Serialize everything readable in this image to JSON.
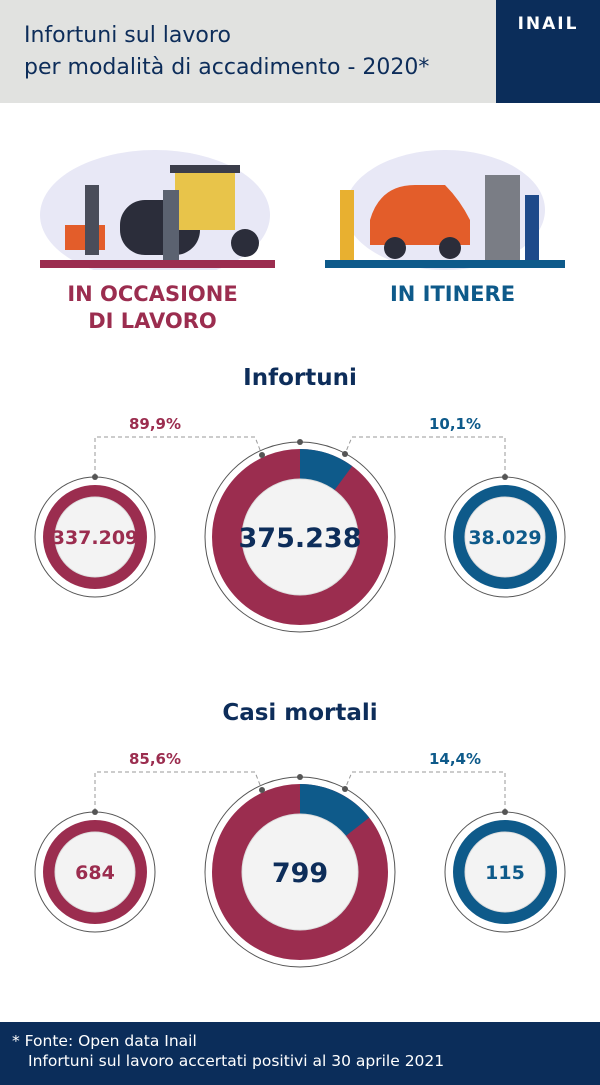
{
  "header": {
    "title_line1": "Infortuni sul lavoro",
    "title_line2": "per modalità di accadimento - 2020*",
    "logo": "INAIL"
  },
  "categories": [
    {
      "label_line1": "IN OCCASIONE",
      "label_line2": "DI LAVORO",
      "illustration": "road-workers-illustration",
      "color": "#9b2d4f"
    },
    {
      "label_line1": "IN ITINERE",
      "label_line2": "",
      "illustration": "car-charging-illustration",
      "color": "#0e5a8a"
    }
  ],
  "chart_data": [
    {
      "type": "pie",
      "title": "Infortuni",
      "total": "375.238",
      "categories": [
        "In occasione di lavoro",
        "In itinere"
      ],
      "values": [
        337209,
        38029
      ],
      "value_labels": [
        "337.209",
        "38.029"
      ],
      "percent_labels": [
        "89,9%",
        "10,1%"
      ],
      "percents": [
        89.9,
        10.1
      ]
    },
    {
      "type": "pie",
      "title": "Casi mortali",
      "total": "799",
      "categories": [
        "In occasione di lavoro",
        "In itinere"
      ],
      "values": [
        684,
        115
      ],
      "value_labels": [
        "684",
        "115"
      ],
      "percent_labels": [
        "85,6%",
        "14,4%"
      ],
      "percents": [
        85.6,
        14.4
      ]
    }
  ],
  "footer": {
    "line1": "* Fonte: Open data Inail",
    "line2": "Infortuni sul lavoro accertati positivi al 30 aprile 2021"
  }
}
